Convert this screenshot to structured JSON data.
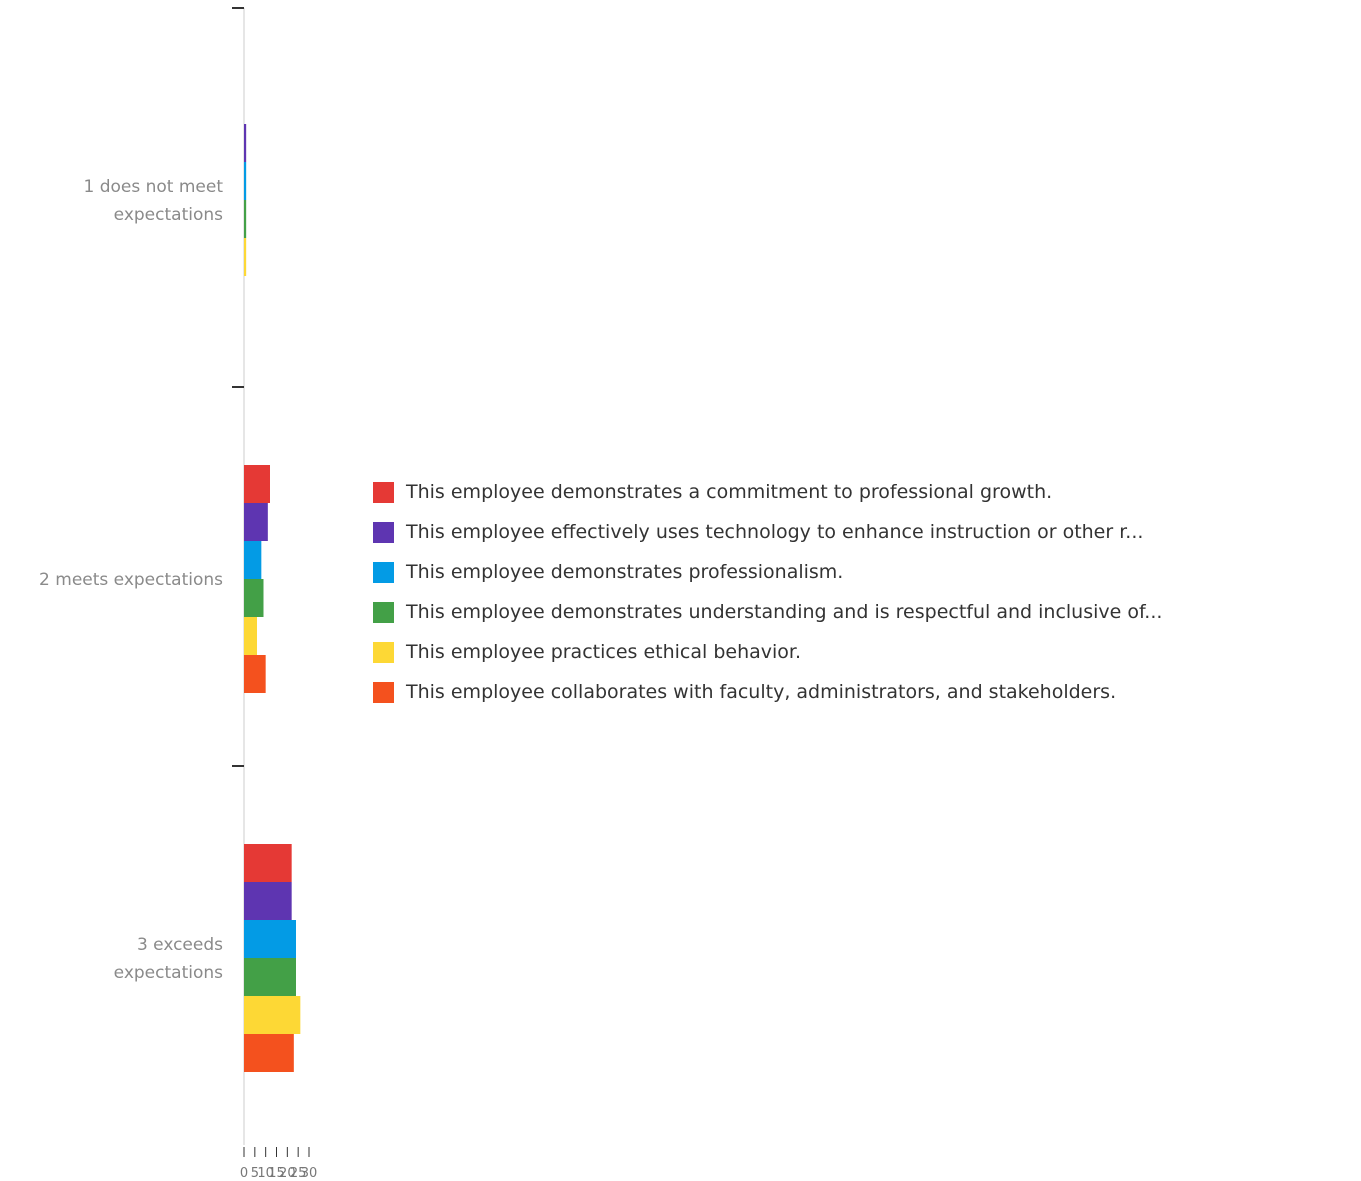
{
  "chart_data": {
    "type": "bar",
    "orientation": "horizontal",
    "categories": [
      "1 does not meet expectations",
      "2 meets expectations",
      "3 exceeds expectations"
    ],
    "series": [
      {
        "name": "This employee demonstrates a commitment to professional growth.",
        "color": "#e53935",
        "values": [
          0,
          12,
          22
        ]
      },
      {
        "name": "This employee effectively uses technology to enhance instruction or other r...",
        "color": "#5e35b1",
        "values": [
          1,
          11,
          22
        ]
      },
      {
        "name": "This employee demonstrates professionalism.",
        "color": "#039be5",
        "values": [
          1,
          8,
          24
        ]
      },
      {
        "name": "This employee demonstrates understanding and is respectful and inclusive of...",
        "color": "#43a047",
        "values": [
          1,
          9,
          24
        ]
      },
      {
        "name": "This employee practices ethical behavior.",
        "color": "#fdd835",
        "values": [
          1,
          6,
          26
        ]
      },
      {
        "name": "This employee collaborates with faculty, administrators, and stakeholders.",
        "color": "#f4511e",
        "values": [
          0,
          10,
          23
        ]
      }
    ],
    "xlim": [
      0,
      30
    ],
    "x_tick_labels": [
      "0",
      "5",
      "10",
      "15",
      "20",
      "25",
      "30"
    ],
    "legend_position": "right",
    "grid": false
  }
}
